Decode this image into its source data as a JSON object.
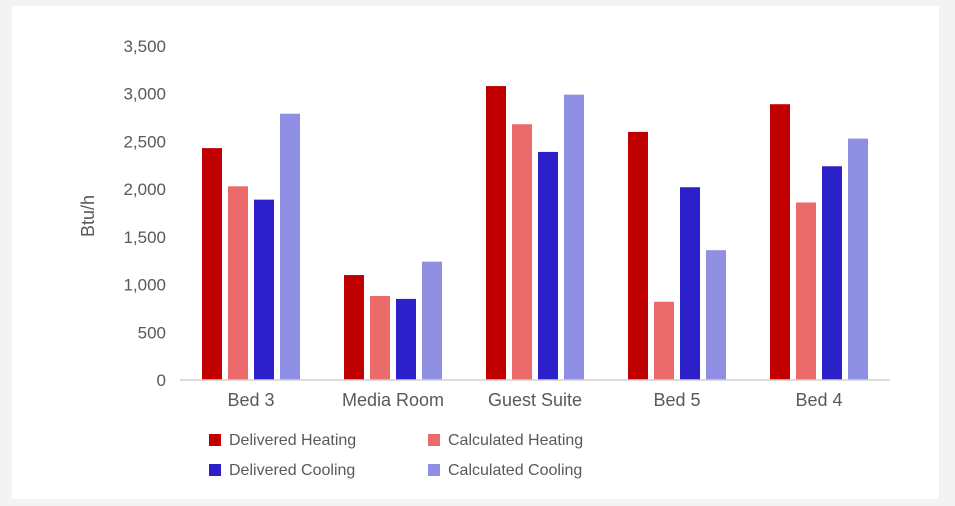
{
  "chart_data": {
    "type": "bar",
    "title": "",
    "xlabel": "",
    "ylabel": "Btu/h",
    "ylim": [
      0,
      3500
    ],
    "yticks": [
      0,
      500,
      1000,
      1500,
      2000,
      2500,
      3000,
      3500
    ],
    "ytick_labels": [
      "0",
      "500",
      "1,000",
      "1,500",
      "2,000",
      "2,500",
      "3,000",
      "3,500"
    ],
    "grid": false,
    "legend_position": "bottom-left",
    "categories": [
      "Bed 3",
      "Media Room",
      "Guest Suite",
      "Bed 5",
      "Bed 4"
    ],
    "series": [
      {
        "name": "Delivered Heating",
        "color": "#c00000",
        "values": [
          2430,
          1100,
          3080,
          2600,
          2890
        ]
      },
      {
        "name": "Calculated Heating",
        "color": "#eb6b6b",
        "values": [
          2030,
          880,
          2680,
          820,
          1860
        ]
      },
      {
        "name": "Delivered Cooling",
        "color": "#2b20c9",
        "values": [
          1890,
          850,
          2390,
          2020,
          2240
        ]
      },
      {
        "name": "Calculated Cooling",
        "color": "#8f8fe3",
        "values": [
          2790,
          1240,
          2990,
          1360,
          2530
        ]
      }
    ]
  }
}
